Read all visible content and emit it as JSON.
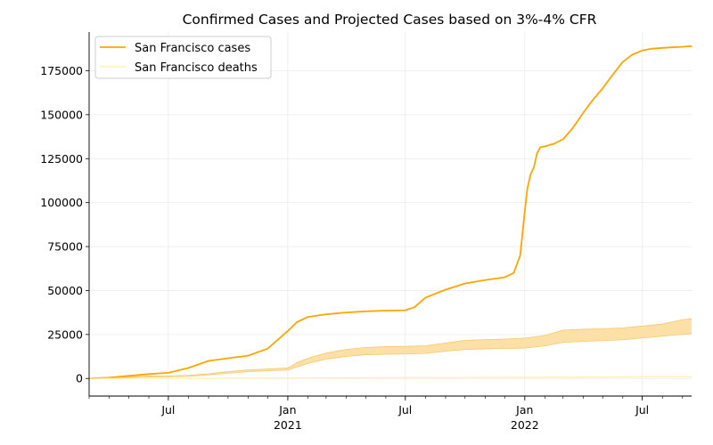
{
  "chart_data": {
    "type": "line",
    "title": "Confirmed Cases and Projected Cases based on 3%-4% CFR",
    "xlabel": "",
    "ylabel": "",
    "grid": true,
    "legend_placement": "top-left",
    "x_range": [
      "2020-03-01",
      "2022-09-15"
    ],
    "ylim": [
      -10000,
      197000
    ],
    "y_ticks": [
      0,
      25000,
      50000,
      75000,
      100000,
      125000,
      150000,
      175000
    ],
    "y_tick_labels": [
      "0",
      "25000",
      "50000",
      "75000",
      "100000",
      "125000",
      "150000",
      "175000"
    ],
    "x_major_ticks": [
      {
        "date": "2020-07-01",
        "label": "Jul"
      },
      {
        "date": "2021-01-01",
        "label": "Jan",
        "sublabel": "2021"
      },
      {
        "date": "2021-07-01",
        "label": "Jul"
      },
      {
        "date": "2022-01-01",
        "label": "Jan",
        "sublabel": "2022"
      },
      {
        "date": "2022-07-01",
        "label": "Jul"
      }
    ],
    "colors": {
      "cases": "#ffa500",
      "deaths": "#ffeeb0",
      "band": "#fde0a6",
      "band_edge": "#f7c46a",
      "grid": "#ebebeb"
    },
    "series": [
      {
        "name": "San Francisco cases",
        "x": [
          "2020-03-01",
          "2020-04-01",
          "2020-05-01",
          "2020-06-01",
          "2020-07-01",
          "2020-08-01",
          "2020-09-01",
          "2020-10-01",
          "2020-11-01",
          "2020-12-01",
          "2020-12-15",
          "2021-01-01",
          "2021-01-15",
          "2021-02-01",
          "2021-03-01",
          "2021-04-01",
          "2021-05-01",
          "2021-06-01",
          "2021-07-01",
          "2021-07-15",
          "2021-08-01",
          "2021-09-01",
          "2021-10-01",
          "2021-11-01",
          "2021-12-01",
          "2021-12-15",
          "2021-12-25",
          "2022-01-01",
          "2022-01-05",
          "2022-01-10",
          "2022-01-15",
          "2022-01-20",
          "2022-01-25",
          "2022-02-01",
          "2022-02-15",
          "2022-03-01",
          "2022-03-15",
          "2022-04-01",
          "2022-04-15",
          "2022-05-01",
          "2022-05-15",
          "2022-06-01",
          "2022-06-15",
          "2022-07-01",
          "2022-07-15",
          "2022-08-01",
          "2022-08-15",
          "2022-09-01",
          "2022-09-15"
        ],
        "values": [
          0,
          500,
          1500,
          2500,
          3200,
          6000,
          10000,
          11500,
          13000,
          17000,
          21500,
          27000,
          32000,
          35000,
          36500,
          37500,
          38200,
          38600,
          38800,
          40500,
          46000,
          50500,
          54000,
          56000,
          57500,
          60000,
          70000,
          95000,
          108000,
          116000,
          120000,
          128000,
          131500,
          132000,
          133500,
          136000,
          142000,
          151000,
          158000,
          165000,
          172000,
          180000,
          184000,
          186500,
          187500,
          188000,
          188300,
          188600,
          189000
        ]
      },
      {
        "name": "San Francisco deaths",
        "x": [
          "2020-03-01",
          "2020-06-01",
          "2020-09-01",
          "2021-01-01",
          "2021-06-01",
          "2022-01-01",
          "2022-06-01",
          "2022-09-15"
        ],
        "values": [
          0,
          40,
          80,
          250,
          550,
          700,
          900,
          1000
        ]
      }
    ],
    "projection_band": {
      "x": [
        "2020-03-01",
        "2020-04-01",
        "2020-05-01",
        "2020-06-01",
        "2020-07-01",
        "2020-08-01",
        "2020-09-01",
        "2020-10-01",
        "2020-11-01",
        "2020-12-01",
        "2021-01-01",
        "2021-01-15",
        "2021-02-01",
        "2021-03-01",
        "2021-04-01",
        "2021-05-01",
        "2021-06-01",
        "2021-07-01",
        "2021-08-01",
        "2021-09-01",
        "2021-10-01",
        "2021-11-01",
        "2021-12-01",
        "2022-01-01",
        "2022-02-01",
        "2022-03-01",
        "2022-04-01",
        "2022-05-01",
        "2022-06-01",
        "2022-07-01",
        "2022-08-01",
        "2022-09-01",
        "2022-09-15"
      ],
      "lower": [
        0,
        200,
        600,
        900,
        1000,
        1200,
        2000,
        3000,
        3800,
        4300,
        4800,
        6500,
        8500,
        11000,
        12500,
        13500,
        13800,
        13900,
        14200,
        15500,
        16500,
        16800,
        17000,
        17300,
        18500,
        20500,
        21000,
        21500,
        22000,
        23000,
        24000,
        25000,
        25500
      ],
      "upper": [
        0,
        300,
        900,
        1400,
        1500,
        1800,
        2700,
        3900,
        4900,
        5400,
        6000,
        9000,
        11500,
        14500,
        16500,
        17700,
        18100,
        18300,
        18600,
        20200,
        21700,
        22100,
        22400,
        23000,
        24500,
        27500,
        28000,
        28300,
        28800,
        29800,
        31000,
        33500,
        34000
      ]
    }
  }
}
